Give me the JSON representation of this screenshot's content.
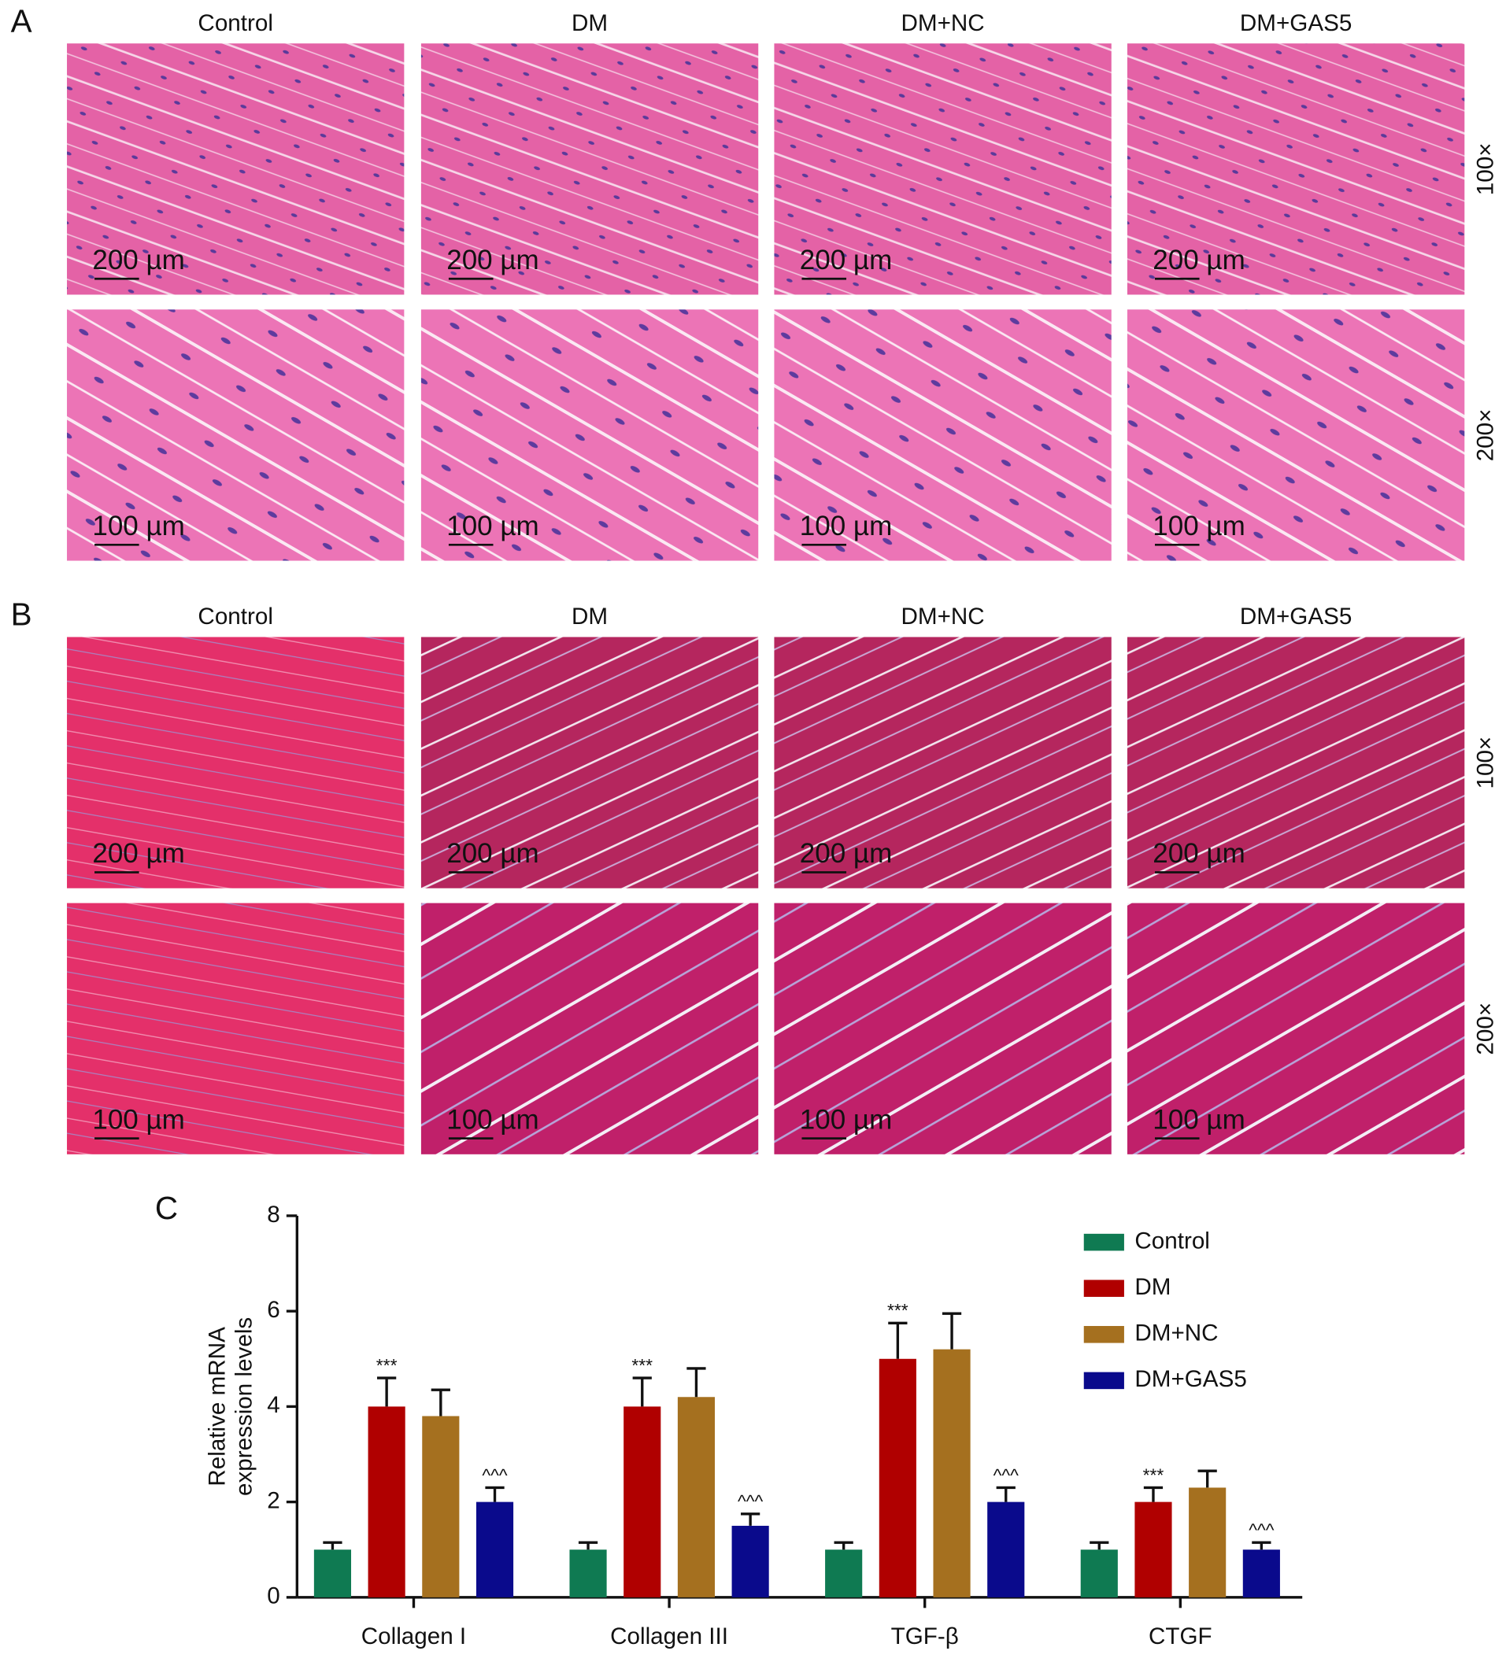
{
  "panels": [
    {
      "label": "A",
      "columns": [
        "Control",
        "DM",
        "DM+NC",
        "DM+GAS5"
      ],
      "rows": [
        {
          "magnification": "100×",
          "scale_bars": [
            "200 µm",
            "200 µm",
            "200 µm",
            "200 µm"
          ]
        },
        {
          "magnification": "200×",
          "scale_bars": [
            "100 µm",
            "100 µm",
            "100 µm",
            "100 µm"
          ]
        }
      ]
    },
    {
      "label": "B",
      "columns": [
        "Control",
        "DM",
        "DM+NC",
        "DM+GAS5"
      ],
      "rows": [
        {
          "magnification": "100×",
          "scale_bars": [
            "200 µm",
            "200 µm",
            "200 µm",
            "200 µm"
          ]
        },
        {
          "magnification": "200×",
          "scale_bars": [
            "100 µm",
            "100 µm",
            "100 µm",
            "100 µm"
          ]
        }
      ]
    }
  ],
  "chart_data": {
    "type": "bar",
    "label": "C",
    "ylabel": [
      "Relative mRNA",
      "expression levels"
    ],
    "categories": [
      "Collagen I",
      "Collagen III",
      "TGF-β",
      "CTGF"
    ],
    "ylim": [
      0,
      8
    ],
    "yticks": [
      0,
      2,
      4,
      6,
      8
    ],
    "series": [
      {
        "name": "Control",
        "color": "#0f7a52",
        "values": [
          1,
          1,
          1,
          1
        ],
        "errors": [
          0.15,
          0.15,
          0.15,
          0.15
        ]
      },
      {
        "name": "DM",
        "color": "#b00000",
        "values": [
          4,
          4,
          5,
          2
        ],
        "errors": [
          0.6,
          0.6,
          0.75,
          0.3
        ],
        "annotations": [
          "***",
          "***",
          "***",
          "***"
        ]
      },
      {
        "name": "DM+NC",
        "color": "#a5701f",
        "values": [
          3.8,
          4.2,
          5.2,
          2.3
        ],
        "errors": [
          0.55,
          0.6,
          0.75,
          0.35
        ]
      },
      {
        "name": "DM+GAS5",
        "color": "#0a0a8c",
        "values": [
          2,
          1.5,
          2,
          1
        ],
        "errors": [
          0.3,
          0.25,
          0.3,
          0.15
        ],
        "annotations": [
          "^^^",
          "^^^",
          "^^^",
          "^^^"
        ]
      }
    ]
  }
}
